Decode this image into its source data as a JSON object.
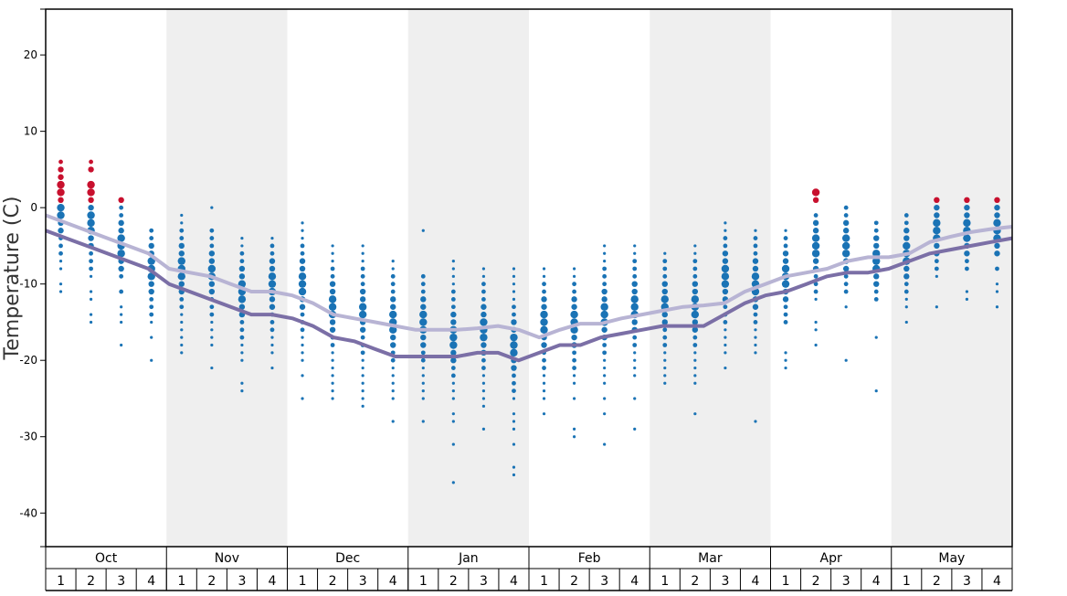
{
  "chart_data": {
    "type": "scatter",
    "ylabel": "Temperature (C)",
    "xlabel": "",
    "ylim": [
      -44.4,
      26
    ],
    "yticks": [
      -40,
      -30,
      -20,
      -10,
      0,
      10,
      20
    ],
    "months": [
      "Oct",
      "Nov",
      "Dec",
      "Jan",
      "Feb",
      "Mar",
      "Apr",
      "May"
    ],
    "weeks_per_month": [
      "1",
      "2",
      "3",
      "4"
    ],
    "shaded_months": [
      1,
      3,
      5,
      7
    ],
    "grid": false,
    "legend": "none",
    "colors": {
      "cold_points": "#1a73b5",
      "warm_points": "#c8102e",
      "mean_line": "#b8b4d4",
      "low_line": "#7b6fa6",
      "shade": "#efefef"
    },
    "mean_line": [
      -1,
      -2,
      -3,
      -4,
      -5,
      -6,
      -8,
      -8.5,
      -9,
      -10,
      -11,
      -11,
      -11.5,
      -12.5,
      -14,
      -14.5,
      -15,
      -15.5,
      -16,
      -16,
      -16,
      -15.8,
      -15.5,
      -16,
      -17,
      -16,
      -15.2,
      -15.2,
      -14.5,
      -14,
      -13.5,
      -13,
      -12.8,
      -12.5,
      -11,
      -10,
      -9,
      -8.5,
      -8,
      -7,
      -6.5,
      -6.5,
      -6,
      -4.5,
      -3.8,
      -3.2,
      -2.8,
      -2.5
    ],
    "low_line": [
      -3,
      -4,
      -5,
      -6,
      -7,
      -8,
      -10,
      -11,
      -12,
      -13,
      -14,
      -14,
      -14.5,
      -15.5,
      -17,
      -17.5,
      -18.5,
      -19.5,
      -19.5,
      -19.5,
      -19.5,
      -19,
      -19,
      -20,
      -19,
      -18,
      -18,
      -17,
      -16.5,
      -16,
      -15.5,
      -15.5,
      -15.5,
      -14,
      -12.5,
      -11.5,
      -11,
      -10,
      -9,
      -8.5,
      -8.5,
      -8,
      -7,
      -6,
      -5.5,
      -5,
      -4.5,
      -4
    ],
    "weekly_points": [
      {
        "week": "Oct 1",
        "cold": [
          0,
          -1,
          -2,
          -3,
          -4,
          -5,
          -6,
          -7,
          -8,
          -10,
          -11
        ],
        "warm": [
          1,
          2,
          3,
          4,
          5,
          6
        ]
      },
      {
        "week": "Oct 2",
        "cold": [
          0,
          -1,
          -2,
          -3,
          -4,
          -5,
          -6,
          -7,
          -8,
          -9,
          -11,
          -12,
          -14,
          -15
        ],
        "warm": [
          1,
          2,
          3,
          5,
          6
        ]
      },
      {
        "week": "Oct 3",
        "cold": [
          0,
          -1,
          -2,
          -3,
          -4,
          -5,
          -6,
          -7,
          -8,
          -9,
          -11,
          -13,
          -14,
          -15,
          -18
        ],
        "warm": [
          1
        ]
      },
      {
        "week": "Oct 4",
        "cold": [
          -3,
          -4,
          -5,
          -6,
          -7,
          -8,
          -9,
          -10,
          -11,
          -12,
          -13,
          -14,
          -15,
          -17,
          -20
        ],
        "warm": []
      },
      {
        "week": "Nov 1",
        "cold": [
          -1,
          -2,
          -3,
          -4,
          -5,
          -6,
          -7,
          -8,
          -9,
          -10,
          -11,
          -12,
          -13,
          -14,
          -15,
          -16,
          -17,
          -18,
          -19
        ],
        "warm": []
      },
      {
        "week": "Nov 2",
        "cold": [
          0,
          -3,
          -4,
          -5,
          -6,
          -7,
          -8,
          -9,
          -10,
          -11,
          -12,
          -13,
          -14,
          -15,
          -16,
          -17,
          -18,
          -21
        ],
        "warm": []
      },
      {
        "week": "Nov 3",
        "cold": [
          -4,
          -5,
          -6,
          -7,
          -8,
          -9,
          -10,
          -11,
          -12,
          -13,
          -14,
          -15,
          -16,
          -17,
          -18,
          -19,
          -20,
          -23,
          -24
        ],
        "warm": []
      },
      {
        "week": "Nov 4",
        "cold": [
          -4,
          -5,
          -6,
          -7,
          -8,
          -9,
          -10,
          -11,
          -12,
          -13,
          -14,
          -15,
          -16,
          -17,
          -18,
          -19,
          -21
        ],
        "warm": []
      },
      {
        "week": "Dec 1",
        "cold": [
          -2,
          -3,
          -4,
          -5,
          -6,
          -7,
          -8,
          -9,
          -10,
          -11,
          -12,
          -13,
          -14,
          -15,
          -16,
          -17,
          -18,
          -19,
          -20,
          -22,
          -25
        ],
        "warm": []
      },
      {
        "week": "Dec 2",
        "cold": [
          -5,
          -6,
          -7,
          -8,
          -9,
          -10,
          -11,
          -12,
          -13,
          -14,
          -15,
          -16,
          -17,
          -18,
          -19,
          -20,
          -21,
          -22,
          -23,
          -24,
          -25
        ],
        "warm": []
      },
      {
        "week": "Dec 3",
        "cold": [
          -5,
          -6,
          -7,
          -8,
          -9,
          -10,
          -11,
          -12,
          -13,
          -14,
          -15,
          -16,
          -17,
          -18,
          -19,
          -20,
          -21,
          -22,
          -23,
          -24,
          -25,
          -26
        ],
        "warm": []
      },
      {
        "week": "Dec 4",
        "cold": [
          -7,
          -8,
          -9,
          -10,
          -11,
          -12,
          -13,
          -14,
          -15,
          -16,
          -17,
          -18,
          -19,
          -20,
          -21,
          -22,
          -23,
          -24,
          -25,
          -28
        ],
        "warm": []
      },
      {
        "week": "Jan 1",
        "cold": [
          -3,
          -9,
          -10,
          -11,
          -12,
          -13,
          -14,
          -15,
          -16,
          -17,
          -18,
          -19,
          -20,
          -21,
          -22,
          -23,
          -24,
          -25,
          -28
        ],
        "warm": []
      },
      {
        "week": "Jan 2",
        "cold": [
          -7,
          -8,
          -9,
          -10,
          -11,
          -12,
          -13,
          -14,
          -15,
          -16,
          -17,
          -18,
          -19,
          -20,
          -21,
          -22,
          -23,
          -24,
          -25,
          -27,
          -28,
          -31,
          -36
        ],
        "warm": []
      },
      {
        "week": "Jan 3",
        "cold": [
          -8,
          -9,
          -10,
          -11,
          -12,
          -13,
          -14,
          -15,
          -16,
          -17,
          -18,
          -19,
          -20,
          -21,
          -22,
          -23,
          -24,
          -25,
          -26,
          -29
        ],
        "warm": []
      },
      {
        "week": "Jan 4",
        "cold": [
          -8,
          -9,
          -10,
          -11,
          -12,
          -13,
          -14,
          -15,
          -16,
          -17,
          -18,
          -19,
          -20,
          -21,
          -22,
          -23,
          -24,
          -25,
          -27,
          -28,
          -29,
          -31,
          -34,
          -35
        ],
        "warm": []
      },
      {
        "week": "Feb 1",
        "cold": [
          -8,
          -9,
          -10,
          -11,
          -12,
          -13,
          -14,
          -15,
          -16,
          -17,
          -18,
          -19,
          -20,
          -21,
          -22,
          -23,
          -24,
          -25,
          -27
        ],
        "warm": []
      },
      {
        "week": "Feb 2",
        "cold": [
          -8,
          -9,
          -10,
          -11,
          -12,
          -13,
          -14,
          -15,
          -16,
          -17,
          -18,
          -19,
          -20,
          -21,
          -22,
          -23,
          -25,
          -29,
          -30
        ],
        "warm": []
      },
      {
        "week": "Feb 3",
        "cold": [
          -5,
          -6,
          -7,
          -8,
          -9,
          -10,
          -11,
          -12,
          -13,
          -14,
          -15,
          -16,
          -17,
          -18,
          -19,
          -20,
          -21,
          -22,
          -23,
          -25,
          -27,
          -31
        ],
        "warm": []
      },
      {
        "week": "Feb 4",
        "cold": [
          -5,
          -6,
          -7,
          -8,
          -9,
          -10,
          -11,
          -12,
          -13,
          -14,
          -15,
          -16,
          -17,
          -18,
          -19,
          -20,
          -21,
          -22,
          -25,
          -29
        ],
        "warm": []
      },
      {
        "week": "Mar 1",
        "cold": [
          -6,
          -7,
          -8,
          -9,
          -10,
          -11,
          -12,
          -13,
          -14,
          -15,
          -16,
          -17,
          -18,
          -19,
          -20,
          -21,
          -22,
          -23
        ],
        "warm": []
      },
      {
        "week": "Mar 2",
        "cold": [
          -5,
          -6,
          -7,
          -8,
          -9,
          -10,
          -11,
          -12,
          -13,
          -14,
          -15,
          -16,
          -17,
          -18,
          -19,
          -20,
          -21,
          -22,
          -23,
          -27
        ],
        "warm": []
      },
      {
        "week": "Mar 3",
        "cold": [
          -2,
          -3,
          -4,
          -5,
          -6,
          -7,
          -8,
          -9,
          -10,
          -11,
          -12,
          -13,
          -14,
          -15,
          -16,
          -17,
          -18,
          -19,
          -21
        ],
        "warm": []
      },
      {
        "week": "Mar 4",
        "cold": [
          -3,
          -4,
          -5,
          -6,
          -7,
          -8,
          -9,
          -10,
          -11,
          -12,
          -13,
          -14,
          -15,
          -16,
          -17,
          -18,
          -19,
          -28
        ],
        "warm": []
      },
      {
        "week": "Apr 1",
        "cold": [
          -3,
          -4,
          -5,
          -6,
          -7,
          -8,
          -9,
          -10,
          -11,
          -12,
          -13,
          -14,
          -15,
          -19,
          -20,
          -21
        ],
        "warm": []
      },
      {
        "week": "Apr 2",
        "cold": [
          -1,
          -2,
          -3,
          -4,
          -5,
          -6,
          -7,
          -8,
          -9,
          -10,
          -11,
          -12,
          -15,
          -16,
          -18
        ],
        "warm": [
          1,
          2
        ]
      },
      {
        "week": "Apr 3",
        "cold": [
          0,
          -1,
          -2,
          -3,
          -4,
          -5,
          -6,
          -7,
          -8,
          -9,
          -10,
          -11,
          -13,
          -20
        ],
        "warm": []
      },
      {
        "week": "Apr 4",
        "cold": [
          -2,
          -3,
          -4,
          -5,
          -6,
          -7,
          -8,
          -9,
          -10,
          -11,
          -12,
          -17,
          -24
        ],
        "warm": []
      },
      {
        "week": "May 1",
        "cold": [
          -1,
          -2,
          -3,
          -4,
          -5,
          -6,
          -7,
          -8,
          -9,
          -10,
          -11,
          -12,
          -13,
          -15
        ],
        "warm": []
      },
      {
        "week": "May 2",
        "cold": [
          0,
          -1,
          -2,
          -3,
          -4,
          -5,
          -6,
          -7,
          -8,
          -9,
          -13
        ],
        "warm": [
          1
        ]
      },
      {
        "week": "May 3",
        "cold": [
          0,
          -1,
          -2,
          -3,
          -4,
          -5,
          -6,
          -7,
          -8,
          -11,
          -12
        ],
        "warm": [
          1
        ]
      },
      {
        "week": "May 4",
        "cold": [
          0,
          -1,
          -2,
          -3,
          -4,
          -5,
          -6,
          -8,
          -10,
          -11,
          -13
        ],
        "warm": [
          1
        ]
      }
    ]
  }
}
